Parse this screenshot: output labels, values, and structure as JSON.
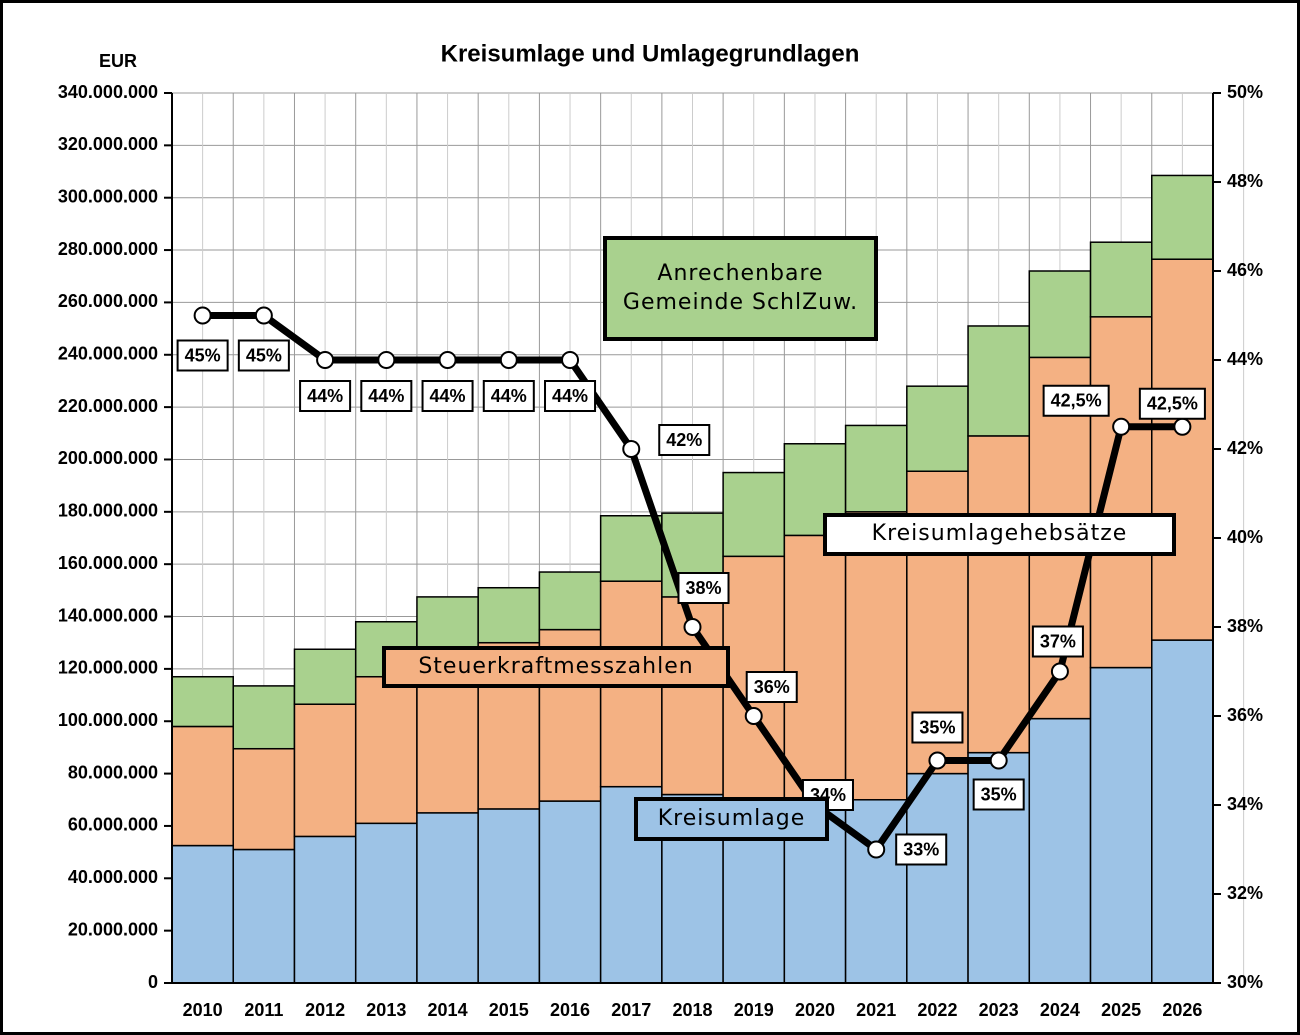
{
  "chart_data": {
    "type": "bar",
    "stacked": true,
    "title": "Kreisumlage und Umlagegrundlagen",
    "y_label": "EUR",
    "categories": [
      "2010",
      "2011",
      "2012",
      "2013",
      "2014",
      "2015",
      "2016",
      "2017",
      "2018",
      "2019",
      "2020",
      "2021",
      "2022",
      "2023",
      "2024",
      "2025",
      "2026"
    ],
    "series": [
      {
        "name": "Kreisumlage",
        "color": "#9dc3e6",
        "values": [
          52500000,
          51000000,
          56000000,
          61000000,
          65000000,
          66500000,
          69500000,
          75000000,
          72000000,
          66000000,
          70000000,
          70000000,
          80000000,
          88000000,
          101000000,
          120500000,
          131000000
        ]
      },
      {
        "name": "Steuerkraftmesszahlen",
        "color": "#f4b183",
        "values": [
          45500000,
          38500000,
          50500000,
          56000000,
          59000000,
          63500000,
          65500000,
          78500000,
          75500000,
          97000000,
          101000000,
          110000000,
          115500000,
          121000000,
          138000000,
          134000000,
          145500000
        ]
      },
      {
        "name": "Anrechenbare Gemeinde SchlZuw.",
        "color": "#a9d18e",
        "values": [
          19000000,
          24000000,
          21000000,
          21000000,
          23500000,
          21000000,
          22000000,
          25000000,
          32000000,
          32000000,
          35000000,
          33000000,
          32500000,
          42000000,
          33000000,
          28500000,
          32000000
        ]
      },
      {
        "name": "Kreisumlagehebsätze",
        "type": "line",
        "axis": "y2",
        "color": "#000000",
        "values": [
          45,
          45,
          44,
          44,
          44,
          44,
          44,
          42,
          38,
          36,
          34,
          33,
          35,
          35,
          37,
          42.5,
          42.5
        ],
        "value_labels": [
          "45%",
          "45%",
          "44%",
          "44%",
          "44%",
          "44%",
          "44%",
          "42%",
          "38%",
          "36%",
          "34%",
          "33%",
          "35%",
          "35%",
          "37%",
          "42,5%",
          "42,5%"
        ]
      }
    ],
    "ylim": [
      0,
      340000000
    ],
    "yticks": [
      0,
      {
        "value": 20000000,
        "label": "20.000.000"
      },
      {
        "value": 40000000,
        "label": "40.000.000"
      },
      {
        "value": 60000000,
        "label": "60.000.000"
      },
      {
        "value": 80000000,
        "label": "80.000.000"
      },
      {
        "value": 100000000,
        "label": "100.000.000"
      },
      {
        "value": 120000000,
        "label": "120.000.000"
      },
      {
        "value": 140000000,
        "label": "140.000.000"
      },
      {
        "value": 160000000,
        "label": "160.000.000"
      },
      {
        "value": 180000000,
        "label": "180.000.000"
      },
      {
        "value": 200000000,
        "label": "200.000.000"
      },
      {
        "value": 220000000,
        "label": "220.000.000"
      },
      {
        "value": 240000000,
        "label": "240.000.000"
      },
      {
        "value": 260000000,
        "label": "260.000.000"
      },
      {
        "value": 280000000,
        "label": "280.000.000"
      },
      {
        "value": 300000000,
        "label": "300.000.000"
      },
      {
        "value": 320000000,
        "label": "320.000.000"
      },
      {
        "value": 340000000,
        "label": "340.000.000"
      }
    ],
    "y2lim": [
      30,
      50
    ],
    "y2ticks": [
      {
        "value": 30,
        "label": "30%"
      },
      {
        "value": 32,
        "label": "32%"
      },
      {
        "value": 34,
        "label": "34%"
      },
      {
        "value": 36,
        "label": "36%"
      },
      {
        "value": 38,
        "label": "38%"
      },
      {
        "value": 40,
        "label": "40%"
      },
      {
        "value": 42,
        "label": "42%"
      },
      {
        "value": 44,
        "label": "44%"
      },
      {
        "value": 46,
        "label": "46%"
      },
      {
        "value": 48,
        "label": "48%"
      },
      {
        "value": 50,
        "label": "50%"
      }
    ],
    "grid": true
  }
}
